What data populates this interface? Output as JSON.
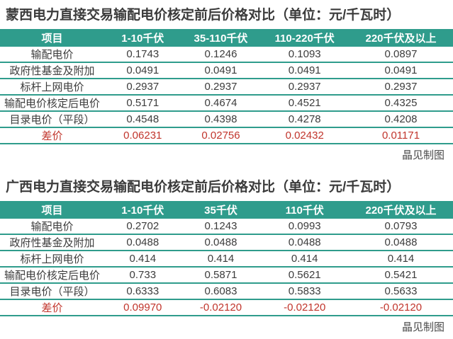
{
  "colors": {
    "header_teal": "#2F9C8C",
    "row_line_teal": "#2F9C8C",
    "title_text": "#3B3B3B",
    "body_text": "#3C3C3C",
    "diff_red": "#C1352C",
    "header_text": "#FFFFFF",
    "page_bg": "#FFFFFF"
  },
  "chart_data": [
    {
      "type": "table",
      "title": "蒙西电力直接交易输配电价核定前后价格对比（单位：元/千瓦时）",
      "columns": [
        "项目",
        "1-10千伏",
        "35-110千伏",
        "110-220千伏",
        "220千伏及以上"
      ],
      "rows": [
        {
          "label": "输配电价",
          "values": [
            "0.1743",
            "0.1246",
            "0.1093",
            "0.0897"
          ],
          "diff": false
        },
        {
          "label": "政府性基金及附加",
          "values": [
            "0.0491",
            "0.0491",
            "0.0491",
            "0.0491"
          ],
          "diff": false
        },
        {
          "label": "标杆上网电价",
          "values": [
            "0.2937",
            "0.2937",
            "0.2937",
            "0.2937"
          ],
          "diff": false
        },
        {
          "label": "输配电价核定后电价",
          "values": [
            "0.5171",
            "0.4674",
            "0.4521",
            "0.4325"
          ],
          "diff": false
        },
        {
          "label": "目录电价（平段）",
          "values": [
            "0.4548",
            "0.4398",
            "0.4278",
            "0.4208"
          ],
          "diff": false
        },
        {
          "label": "差价",
          "values": [
            "0.06231",
            "0.02756",
            "0.02432",
            "0.01171"
          ],
          "diff": true
        }
      ],
      "credit": "晶见制图"
    },
    {
      "type": "table",
      "title": "广西电力直接交易输配电价核定前后价格对比（单位：元/千瓦时）",
      "columns": [
        "项目",
        "1-10千伏",
        "35千伏",
        "110千伏",
        "220千伏及以上"
      ],
      "rows": [
        {
          "label": "输配电价",
          "values": [
            "0.2702",
            "0.1243",
            "0.0993",
            "0.0793"
          ],
          "diff": false
        },
        {
          "label": "政府性基金及附加",
          "values": [
            "0.0488",
            "0.0488",
            "0.0488",
            "0.0488"
          ],
          "diff": false
        },
        {
          "label": "标杆上网电价",
          "values": [
            "0.414",
            "0.414",
            "0.414",
            "0.414"
          ],
          "diff": false
        },
        {
          "label": "输配电价核定后电价",
          "values": [
            "0.733",
            "0.5871",
            "0.5621",
            "0.5421"
          ],
          "diff": false
        },
        {
          "label": "目录电价（平段）",
          "values": [
            "0.6333",
            "0.6083",
            "0.5833",
            "0.5633"
          ],
          "diff": false
        },
        {
          "label": "差价",
          "values": [
            "0.09970",
            "-0.02120",
            "-0.02120",
            "-0.02120"
          ],
          "diff": true
        }
      ],
      "credit": "晶见制图"
    }
  ]
}
